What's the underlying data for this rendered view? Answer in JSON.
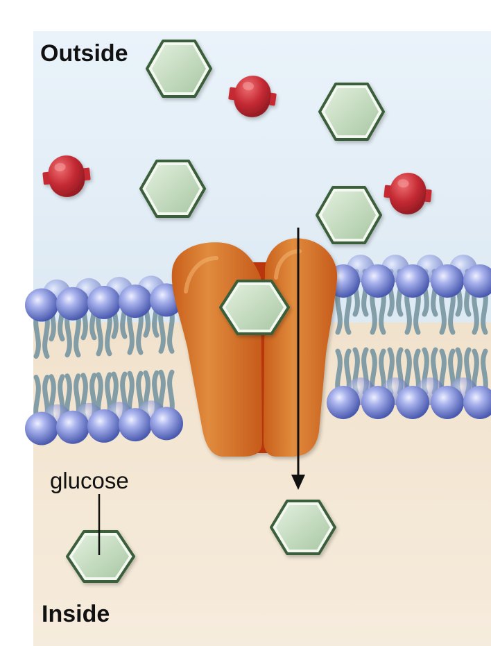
{
  "labels": {
    "outside": "Outside",
    "inside": "Inside",
    "glucose": "glucose"
  },
  "colors": {
    "outside_fluid": "#e6f0f8",
    "inside_fluid": "#f4e6d2",
    "glucose_fill": "#bcd6b8",
    "glucose_outline": "#3b5e3a",
    "other_molecule": "#c52a33",
    "carrier_protein": "#d4712a",
    "phospholipid_head": "#6f82cf",
    "phospholipid_tail": "#7e9aa4",
    "arrow": "#111111"
  }
}
